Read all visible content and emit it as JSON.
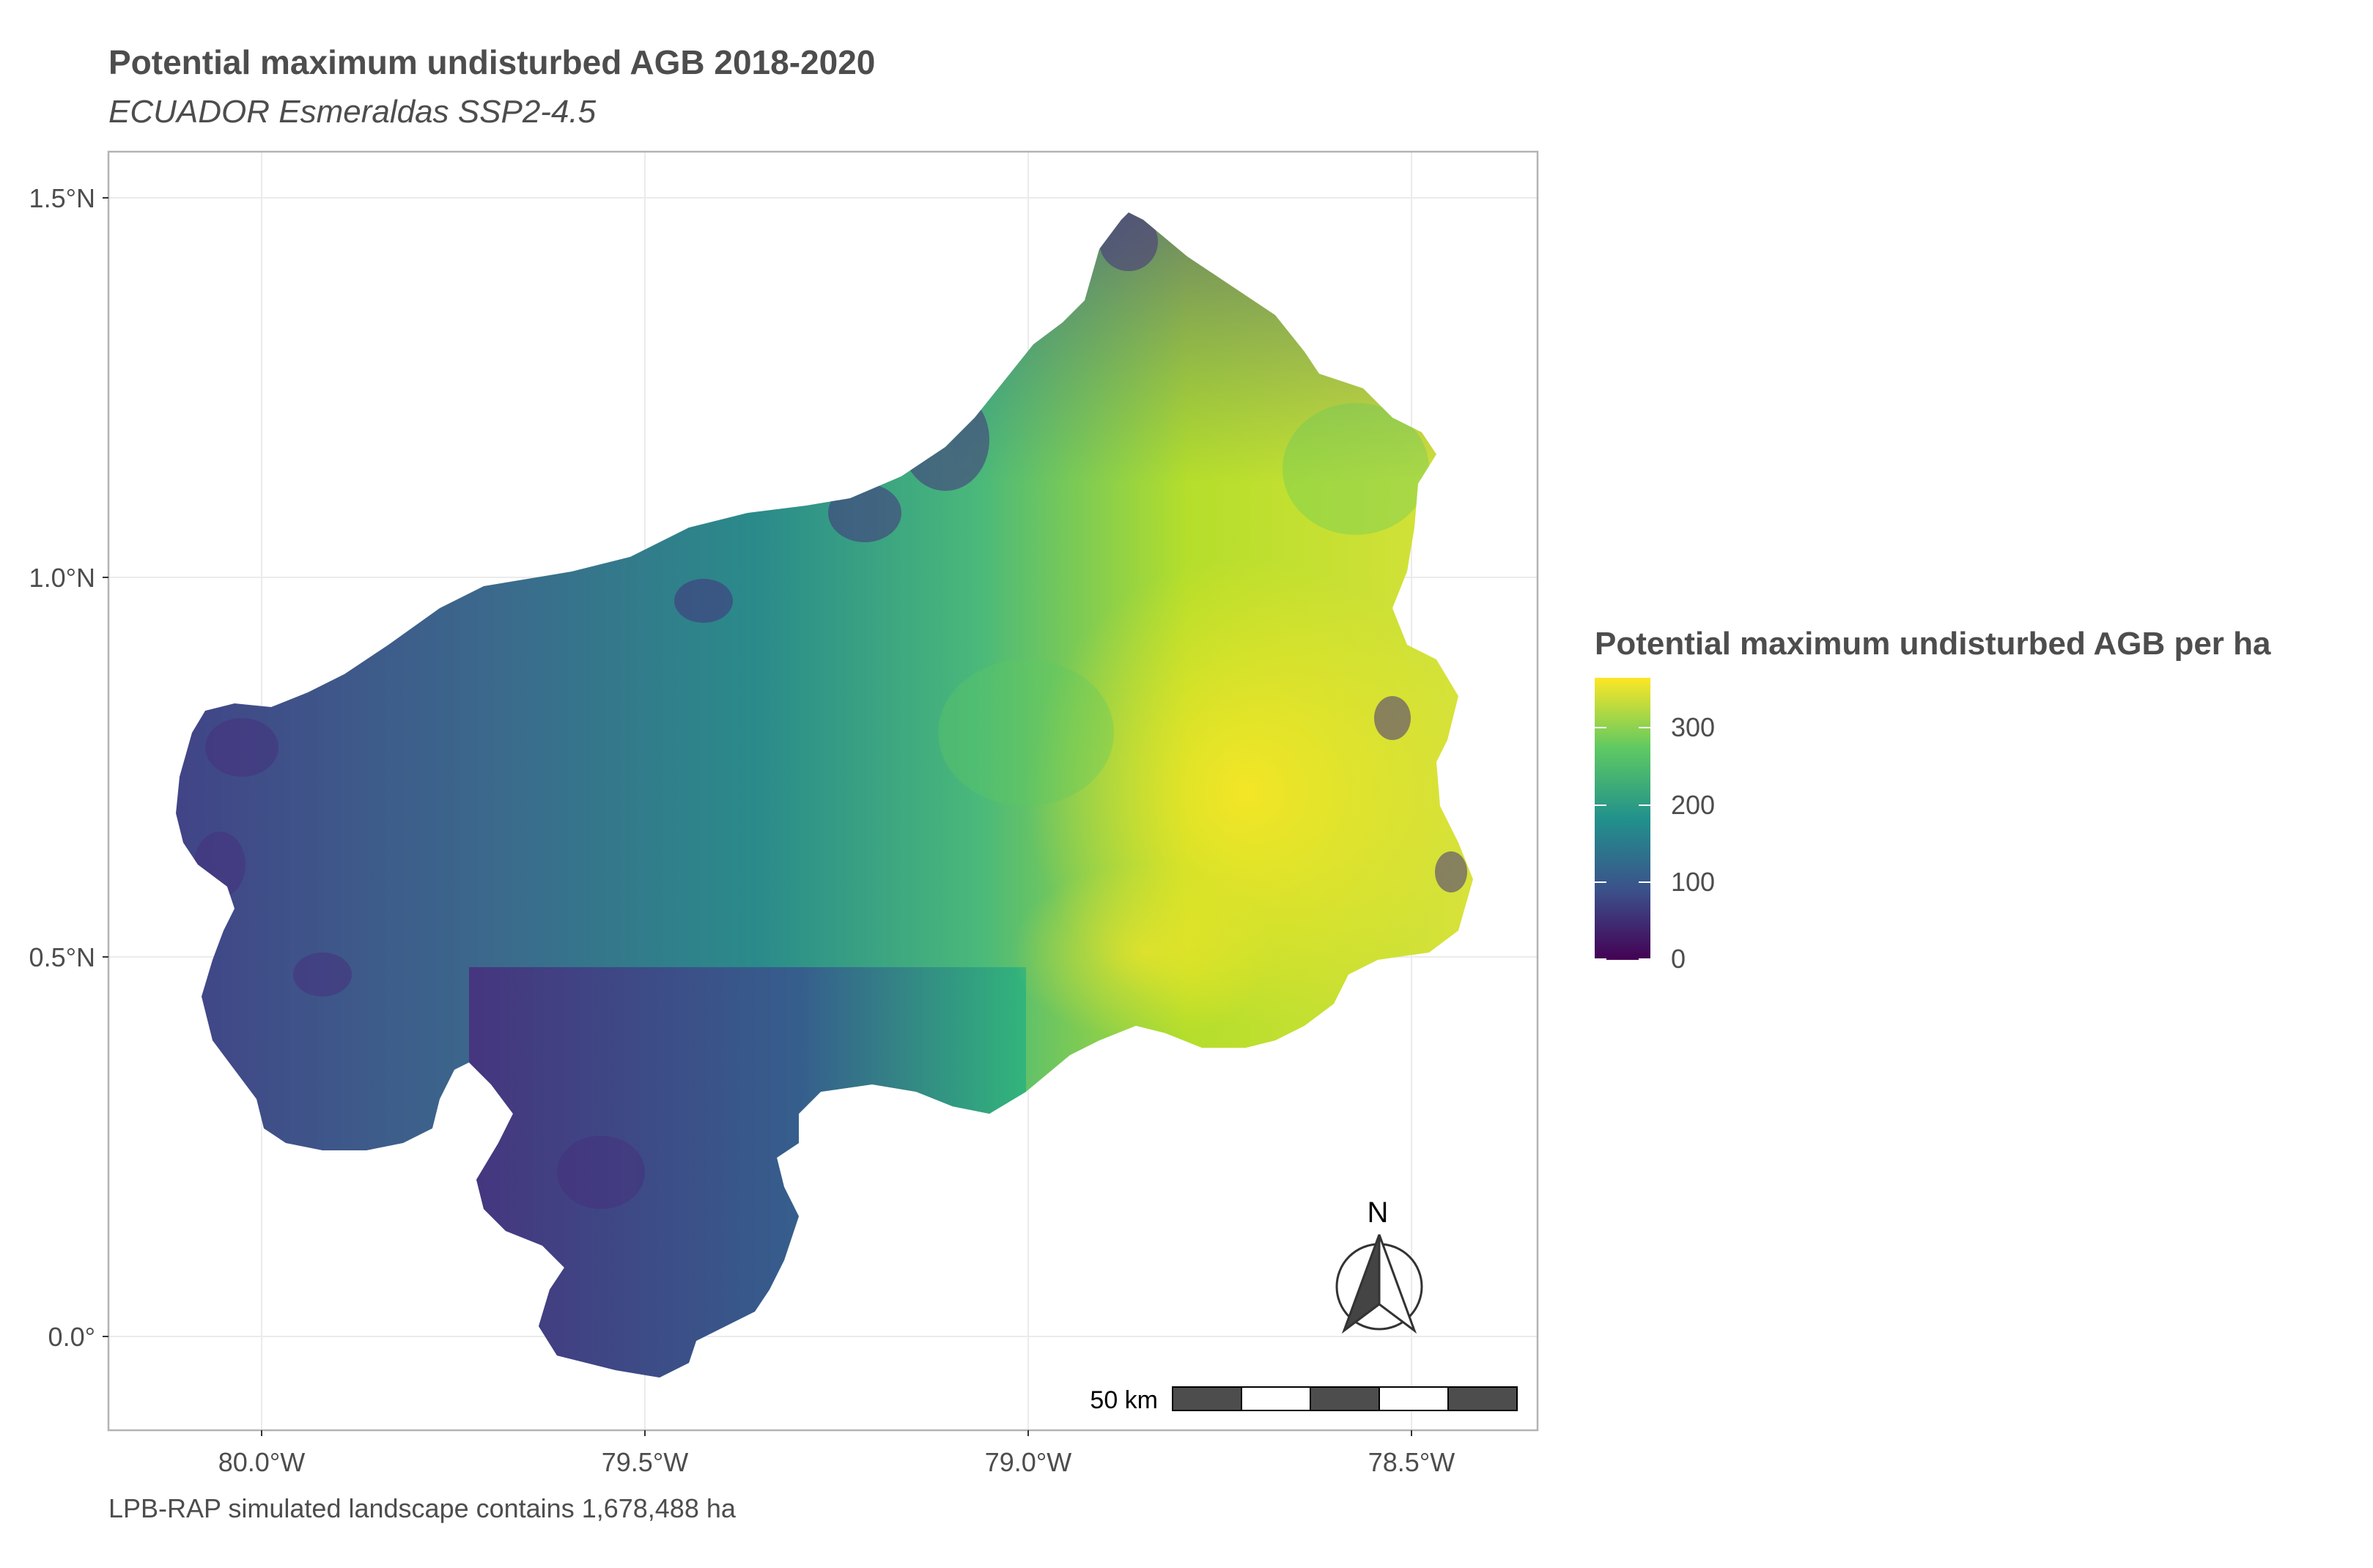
{
  "map": {
    "title": "Potential maximum undisturbed AGB 2018-2020",
    "subtitle": "ECUADOR Esmeraldas SSP2-4.5",
    "caption": "LPB-RAP simulated landscape contains 1,678,488 ha",
    "y_ticks": [
      "1.5°N",
      "1.0°N",
      "0.5°N",
      "0.0°"
    ],
    "x_ticks": [
      "80.0°W",
      "79.5°W",
      "79.0°W",
      "78.5°W"
    ],
    "lat_range": [
      -0.12,
      1.56
    ],
    "lon_range": [
      -80.2,
      -78.37
    ]
  },
  "legend": {
    "title": "Potential maximum undisturbed AGB per ha",
    "labels": [
      "300",
      "200",
      "100",
      "0"
    ],
    "values": [
      300,
      200,
      100,
      0
    ],
    "max_value": 365,
    "colors": [
      "#440154",
      "#3b528b",
      "#21918c",
      "#5ec962",
      "#fde725"
    ]
  },
  "scale_bar": {
    "label": "50 km"
  },
  "north_arrow": {
    "label": "N"
  }
}
